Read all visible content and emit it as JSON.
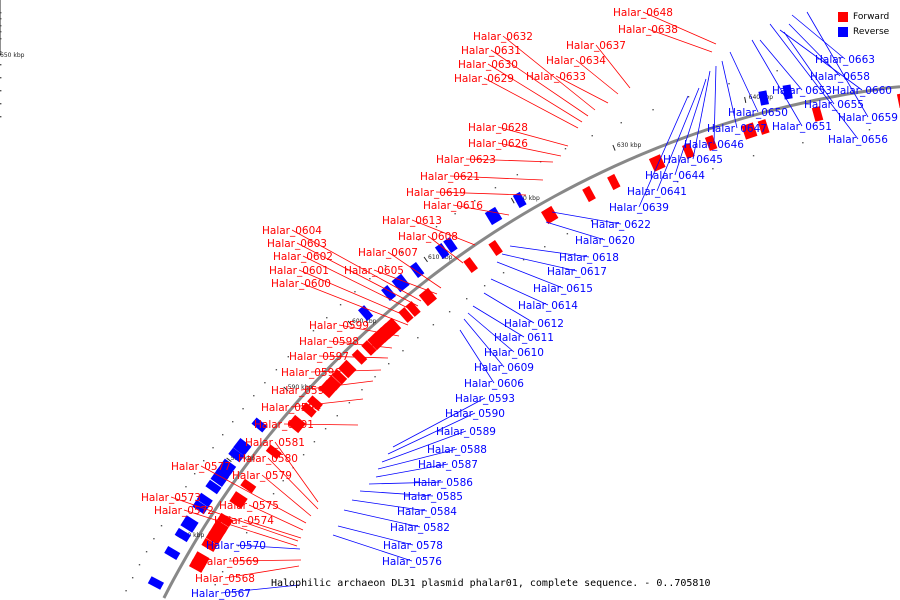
{
  "caption": "Halophilic archaeon DL31 plasmid phalar01, complete sequence. - 0..705810",
  "legend": {
    "forward": {
      "label": "Forward",
      "color": "#ff0000"
    },
    "reverse": {
      "label": "Reverse",
      "color": "#0000ff"
    }
  },
  "colors": {
    "backbone": "#888888",
    "forward": "#ff0000",
    "reverse": "#0000ff"
  },
  "ticks": [
    "570 kbp",
    "580 kbp",
    "590 kbp",
    "600 kbp",
    "610 kbp",
    "620 kbp",
    "630 kbp",
    "640 kbp",
    "650 kbp"
  ],
  "forward_genes": [
    "Halar_0648",
    "Halar_0638",
    "Halar_0637",
    "Halar_0634",
    "Halar_0633",
    "Halar_0632",
    "Halar_0631",
    "Halar_0630",
    "Halar_0629",
    "Halar_0628",
    "Halar_0626",
    "Halar_0623",
    "Halar_0621",
    "Halar_0619",
    "Halar_0616",
    "Halar_0613",
    "Halar_0608",
    "Halar_0607",
    "Halar_0605",
    "Halar_0604",
    "Halar_0603",
    "Halar_0602",
    "Halar_0601",
    "Halar_0600",
    "Halar_0599",
    "Halar_0598",
    "Halar_0597",
    "Halar_0596",
    "Halar_0595",
    "Halar_0594",
    "Halar_0591",
    "Halar_0581",
    "Halar_0580",
    "Halar_0579",
    "Halar_0577",
    "Halar_0575",
    "Halar_0574",
    "Halar_0573",
    "Halar_0572",
    "Halar_0569",
    "Halar_0568"
  ],
  "reverse_genes": [
    "Halar_0663",
    "Halar_0658",
    "Halar_0660",
    "Halar_0653",
    "Halar_0655",
    "Halar_0659",
    "Halar_0650",
    "Halar_0651",
    "Halar_0656",
    "Halar_0647",
    "Halar_0646",
    "Halar_0645",
    "Halar_0644",
    "Halar_0641",
    "Halar_0639",
    "Halar_0622",
    "Halar_0620",
    "Halar_0618",
    "Halar_0617",
    "Halar_0615",
    "Halar_0614",
    "Halar_0612",
    "Halar_0611",
    "Halar_0610",
    "Halar_0609",
    "Halar_0606",
    "Halar_0593",
    "Halar_0590",
    "Halar_0589",
    "Halar_0588",
    "Halar_0587",
    "Halar_0586",
    "Halar_0585",
    "Halar_0584",
    "Halar_0582",
    "Halar_0578",
    "Halar_0576",
    "Halar_0570",
    "Halar_0567"
  ]
}
